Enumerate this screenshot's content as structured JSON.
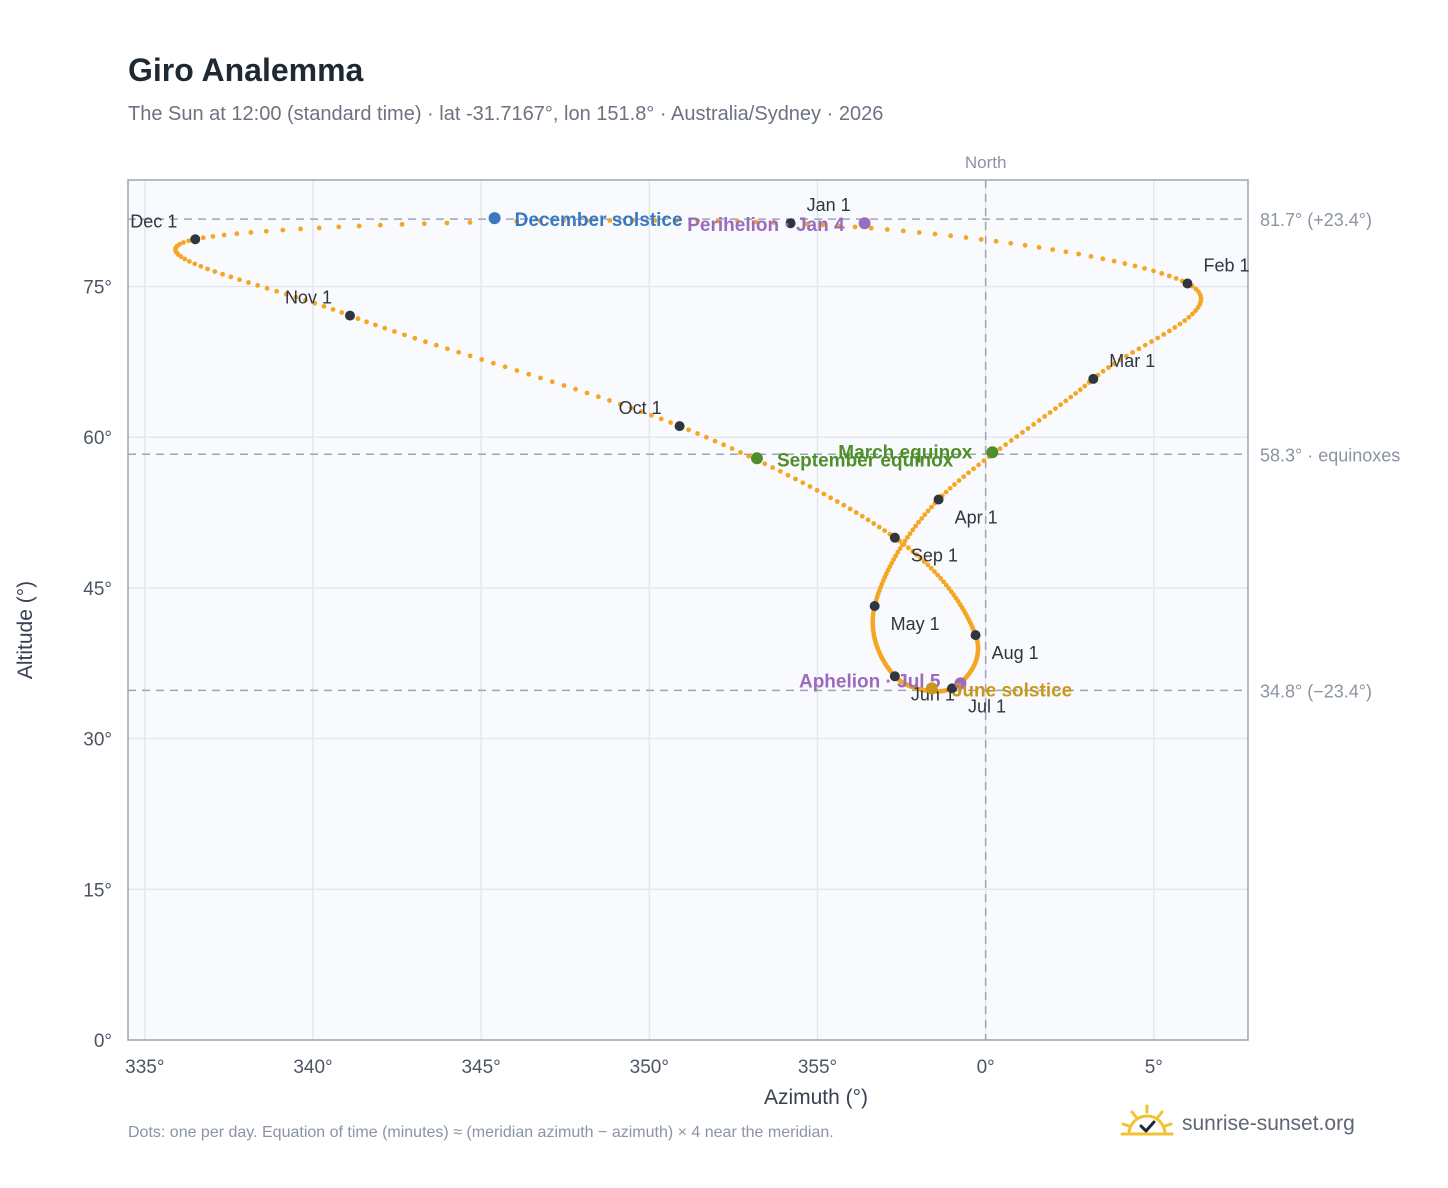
{
  "header": {
    "title": "Giro Analemma",
    "subtitle": "The Sun at 12:00 (standard time) · lat -31.7167°, lon 151.8° · Australia/Sydney · 2026"
  },
  "footer": {
    "note": "Dots: one per day. Equation of time (minutes) ≈ (meridian azimuth − azimuth) × 4 near the meridian.",
    "brand": "sunrise-sunset.org"
  },
  "colors": {
    "analemma": "#f5a623",
    "month_marker": "#2f3640",
    "solstice_dec": "#3a78c0",
    "equinox": "#4f8f2a",
    "aphelion_perihelion": "#9b6bbf",
    "solstice_jun": "#c9971a",
    "reference_line": "#9aa5b5",
    "grid": "#e3e8ee",
    "plot_bg": "#f8fafd",
    "axis": "#9aa5b5"
  },
  "chart_data": {
    "type": "scatter",
    "xlabel": "Azimuth (°)",
    "ylabel": "Altitude (°)",
    "x_tick_labels": [
      "335°",
      "340°",
      "345°",
      "350°",
      "355°",
      "0°",
      "5°"
    ],
    "x_tick_values": [
      -25,
      -20,
      -15,
      -10,
      -5,
      0,
      5
    ],
    "y_ticks": [
      0,
      15,
      30,
      45,
      60,
      75
    ],
    "y_tick_labels": [
      "0°",
      "15°",
      "30°",
      "45°",
      "60°",
      "75°"
    ],
    "xlim": [
      -25.5,
      7.8
    ],
    "ylim": [
      0,
      85.6
    ],
    "grid": true,
    "north_label": "North",
    "reference_lines": [
      {
        "altitude": 81.7,
        "label": "81.7° (+23.4°)"
      },
      {
        "altitude": 58.3,
        "label": "58.3° · equinoxes"
      },
      {
        "altitude": 34.8,
        "label": "34.8° (−23.4°)"
      }
    ],
    "month_points": [
      {
        "label": "Jan 1",
        "azimuth": -5.8,
        "altitude": 81.3
      },
      {
        "label": "Feb 1",
        "azimuth": 6.0,
        "altitude": 75.3
      },
      {
        "label": "Mar 1",
        "azimuth": 3.2,
        "altitude": 65.8
      },
      {
        "label": "Apr 1",
        "azimuth": -1.4,
        "altitude": 53.8
      },
      {
        "label": "May 1",
        "azimuth": -3.3,
        "altitude": 43.2
      },
      {
        "label": "Jun 1",
        "azimuth": -2.7,
        "altitude": 36.2
      },
      {
        "label": "Jul 1",
        "azimuth": -1.0,
        "altitude": 35.0
      },
      {
        "label": "Aug 1",
        "azimuth": -0.3,
        "altitude": 40.3
      },
      {
        "label": "Sep 1",
        "azimuth": -2.7,
        "altitude": 50.0
      },
      {
        "label": "Oct 1",
        "azimuth": -9.1,
        "altitude": 61.1
      },
      {
        "label": "Nov 1",
        "azimuth": -18.9,
        "altitude": 72.1
      },
      {
        "label": "Dec 1",
        "azimuth": -23.5,
        "altitude": 79.7
      }
    ],
    "events": [
      {
        "label": "December solstice",
        "azimuth": -14.6,
        "altitude": 81.8
      },
      {
        "label": "Perihelion · Jan 4",
        "azimuth": -3.6,
        "altitude": 81.3
      },
      {
        "label": "March equinox",
        "azimuth": 0.2,
        "altitude": 58.5
      },
      {
        "label": "September equinox",
        "azimuth": -6.8,
        "altitude": 57.9
      },
      {
        "label": "Aphelion · Jul 5",
        "azimuth": -0.75,
        "altitude": 35.5
      },
      {
        "label": "June solstice",
        "azimuth": -1.6,
        "altitude": 35.0
      }
    ]
  }
}
